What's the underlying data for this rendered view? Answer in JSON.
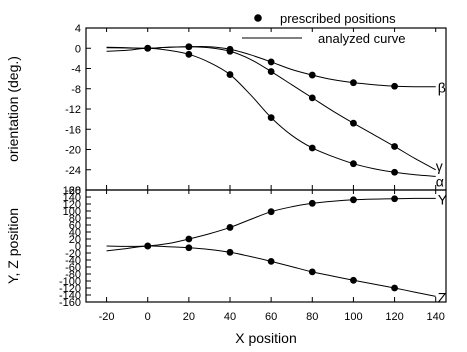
{
  "chart_data": [
    {
      "type": "line",
      "ylabel": "orientation (deg.)",
      "xlim": [
        -30,
        145
      ],
      "ylim": [
        -28,
        4
      ],
      "yticks": [
        4,
        0,
        -4,
        -8,
        -12,
        -16,
        -20,
        -24,
        -28
      ],
      "legend": {
        "placement": "top-right",
        "entries": [
          "prescribed positions",
          "analyzed curve"
        ]
      },
      "series": [
        {
          "name": "β",
          "points_x": [
            0,
            20,
            40,
            60,
            80,
            100,
            120
          ],
          "points_y": [
            0,
            0.3,
            -0.2,
            -2.7,
            -5.3,
            -6.8,
            -7.5
          ],
          "curve_x": [
            -20,
            -10,
            0,
            10,
            20,
            30,
            40,
            50,
            60,
            70,
            80,
            90,
            100,
            110,
            120,
            130,
            140
          ],
          "curve_y": [
            0.2,
            0.1,
            0,
            0.2,
            0.3,
            0.3,
            -0.2,
            -1.3,
            -2.7,
            -4.2,
            -5.3,
            -6.2,
            -6.8,
            -7.2,
            -7.5,
            -7.6,
            -7.6
          ]
        },
        {
          "name": "γ",
          "points_x": [
            0,
            20,
            40,
            60,
            80,
            100,
            120
          ],
          "points_y": [
            0,
            0.3,
            -0.6,
            -4.6,
            -9.8,
            -14.8,
            -19.4
          ],
          "curve_x": [
            -20,
            -10,
            0,
            10,
            20,
            30,
            40,
            50,
            60,
            70,
            80,
            90,
            100,
            110,
            120,
            130,
            140
          ],
          "curve_y": [
            0.1,
            0.05,
            0,
            0.2,
            0.3,
            0.1,
            -0.6,
            -2.2,
            -4.6,
            -7.2,
            -9.8,
            -12.4,
            -14.8,
            -17.1,
            -19.4,
            -21.8,
            -24.0
          ]
        },
        {
          "name": "α",
          "points_x": [
            0,
            20,
            40,
            60,
            80,
            100,
            120
          ],
          "points_y": [
            0,
            -1.2,
            -5.2,
            -13.7,
            -19.7,
            -22.8,
            -24.5
          ],
          "curve_x": [
            -20,
            -10,
            0,
            10,
            20,
            30,
            40,
            50,
            60,
            70,
            80,
            90,
            100,
            110,
            120,
            130,
            140
          ],
          "curve_y": [
            -0.6,
            -0.4,
            0,
            -0.4,
            -1.2,
            -2.8,
            -5.2,
            -9.2,
            -13.7,
            -17.2,
            -19.7,
            -21.4,
            -22.8,
            -23.8,
            -24.5,
            -25.0,
            -25.3
          ]
        }
      ]
    },
    {
      "type": "line",
      "xlabel": "X position",
      "ylabel": "Y, Z  position",
      "xlim": [
        -30,
        145
      ],
      "ylim": [
        -160,
        160
      ],
      "xticks": [
        -20,
        0,
        20,
        40,
        60,
        80,
        100,
        120,
        140
      ],
      "yticks": [
        160,
        140,
        120,
        100,
        80,
        60,
        40,
        20,
        0,
        -20,
        -40,
        -60,
        -80,
        -100,
        -120,
        -140,
        -160
      ],
      "series": [
        {
          "name": "Y",
          "points_x": [
            0,
            20,
            40,
            60,
            80,
            100,
            120
          ],
          "points_y": [
            0,
            20,
            53,
            98,
            122,
            132,
            135
          ],
          "curve_x": [
            -20,
            -10,
            0,
            10,
            20,
            30,
            40,
            50,
            60,
            70,
            80,
            90,
            100,
            110,
            120,
            130,
            140
          ],
          "curve_y": [
            0,
            -1,
            0,
            7,
            20,
            35,
            53,
            76,
            98,
            112,
            122,
            128,
            132,
            134,
            135,
            136,
            136
          ]
        },
        {
          "name": "Z",
          "points_x": [
            0,
            20,
            40,
            60,
            80,
            100,
            120
          ],
          "points_y": [
            0,
            -5,
            -18,
            -44,
            -74,
            -98,
            -120
          ],
          "curve_x": [
            -20,
            -10,
            0,
            10,
            20,
            30,
            40,
            50,
            60,
            70,
            80,
            90,
            100,
            110,
            120,
            130,
            140
          ],
          "curve_y": [
            -14,
            -7,
            0,
            -2,
            -5,
            -10,
            -18,
            -30,
            -44,
            -59,
            -74,
            -86,
            -98,
            -109,
            -120,
            -132,
            -144
          ]
        }
      ]
    }
  ]
}
